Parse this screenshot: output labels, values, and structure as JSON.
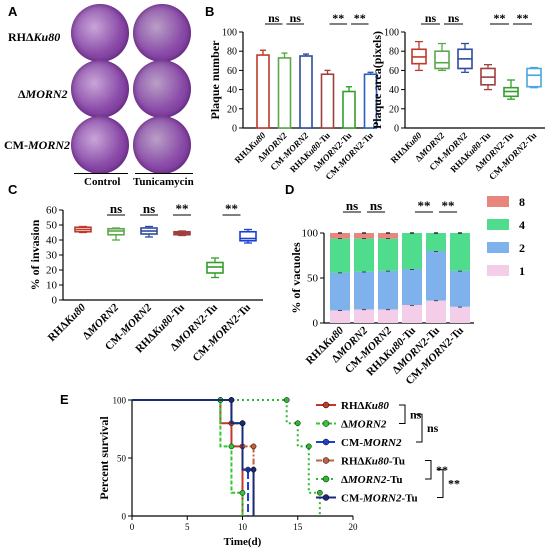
{
  "panels": {
    "A": {
      "letter": "A",
      "rows": [
        {
          "prefix": "RHΔ",
          "italic": "Ku80",
          "suffix": ""
        },
        {
          "prefix": "Δ",
          "italic": "MORN2",
          "suffix": ""
        },
        {
          "prefix": "CM-",
          "italic": "MORN2",
          "suffix": ""
        }
      ],
      "columns": [
        "Control",
        "Tunicamycin"
      ]
    },
    "B": {
      "letter": "B"
    },
    "C": {
      "letter": "C"
    },
    "D": {
      "letter": "D"
    },
    "E": {
      "letter": "E"
    }
  },
  "colors": {
    "ku80": "#c0392b",
    "morn2": "#5aa84a",
    "cm": "#2f4aa0",
    "ku80_tu": "#9e4040",
    "morn2_tu": "#33a02c",
    "cm_tu": "#2c5dc4",
    "plate_purple": "#8a4aa8",
    "plate_light": "#b9a0c6"
  },
  "chart_data": [
    {
      "panel": "B-left",
      "type": "bar",
      "categories": [
        "RHΔKu80",
        "ΔMORN2",
        "CM-MORN2",
        "RHΔKu80-Tu",
        "ΔMORN2-Tu",
        "CM-MORN2-Tu"
      ],
      "values": [
        76,
        73,
        75,
        56,
        38,
        56
      ],
      "errors": [
        5,
        5,
        2,
        4,
        5,
        2
      ],
      "colors": [
        "#c0392b",
        "#5aa84a",
        "#2f4aa0",
        "#9e4040",
        "#33a02c",
        "#2c5dc4"
      ],
      "ylabel": "Plaque number",
      "ylim": [
        0,
        100
      ],
      "yticks": [
        0,
        20,
        40,
        60,
        80,
        100
      ],
      "significance": [
        {
          "from": 0,
          "to": 1,
          "label": "ns"
        },
        {
          "from": 1,
          "to": 2,
          "label": "ns"
        },
        {
          "from": 3,
          "to": 4,
          "label": "**"
        },
        {
          "from": 4,
          "to": 5,
          "label": "**"
        }
      ]
    },
    {
      "panel": "B-right",
      "type": "box",
      "categories": [
        "RHΔKu80",
        "ΔMORN2",
        "CM-MORN2",
        "RHΔKu80-Tu",
        "ΔMORN2-Tu",
        "CM-MORN2-Tu"
      ],
      "boxes": [
        {
          "min": 60,
          "q1": 67,
          "median": 74,
          "q3": 82,
          "max": 90
        },
        {
          "min": 60,
          "q1": 62,
          "median": 68,
          "q3": 80,
          "max": 88
        },
        {
          "min": 58,
          "q1": 62,
          "median": 72,
          "q3": 82,
          "max": 88
        },
        {
          "min": 40,
          "q1": 45,
          "median": 53,
          "q3": 62,
          "max": 66
        },
        {
          "min": 30,
          "q1": 33,
          "median": 38,
          "q3": 42,
          "max": 50
        },
        {
          "min": 42,
          "q1": 43,
          "median": 55,
          "q3": 62,
          "max": 63
        }
      ],
      "colors": [
        "#c0392b",
        "#5aa84a",
        "#2f4aa0",
        "#9e4040",
        "#33a02c",
        "#4aa6e0"
      ],
      "ylabel": "Plaque area(pixels)",
      "ylim": [
        0,
        100
      ],
      "yticks": [
        0,
        20,
        40,
        60,
        80,
        100
      ],
      "significance": [
        {
          "from": 0,
          "to": 1,
          "label": "ns"
        },
        {
          "from": 1,
          "to": 2,
          "label": "ns"
        },
        {
          "from": 3,
          "to": 4,
          "label": "**"
        },
        {
          "from": 4,
          "to": 5,
          "label": "**"
        }
      ]
    },
    {
      "panel": "C",
      "type": "box",
      "categories": [
        "RHΔKu80",
        "ΔMORN2",
        "CM-MORN2",
        "RHΔKu80-Tu",
        "ΔMORN2-Tu",
        "CM-MORN2-Tu"
      ],
      "boxes": [
        {
          "min": 45,
          "q1": 45.5,
          "median": 47,
          "q3": 48.5,
          "max": 49
        },
        {
          "min": 40,
          "q1": 43.5,
          "median": 46,
          "q3": 47.5,
          "max": 48
        },
        {
          "min": 42,
          "q1": 44,
          "median": 46,
          "q3": 48,
          "max": 49
        },
        {
          "min": 43,
          "q1": 43.5,
          "median": 44.5,
          "q3": 45.5,
          "max": 46
        },
        {
          "min": 15,
          "q1": 18,
          "median": 22,
          "q3": 25,
          "max": 28
        },
        {
          "min": 38,
          "q1": 39.5,
          "median": 41,
          "q3": 45.5,
          "max": 47
        }
      ],
      "colors": [
        "#c0392b",
        "#5aa84a",
        "#2f4aa0",
        "#9e4040",
        "#33a02c",
        "#1a3ed0"
      ],
      "ylabel": "% of invasion",
      "ylim": [
        0,
        60
      ],
      "yticks": [
        0,
        10,
        20,
        30,
        40,
        50,
        60
      ],
      "significance": [
        {
          "at": 1,
          "label": "ns"
        },
        {
          "at": 2,
          "label": "ns"
        },
        {
          "at": 3,
          "label": "**"
        },
        {
          "at": 4.5,
          "label": "**"
        }
      ]
    },
    {
      "panel": "D",
      "type": "stacked-bar",
      "categories": [
        "RHΔKu80",
        "ΔMORN2",
        "CM-MORN2",
        "RHΔKu80-Tu",
        "ΔMORN2-Tu",
        "CM-MORN2-Tu"
      ],
      "series": [
        {
          "name": "1",
          "color": "#f4cde8",
          "values": [
            14,
            15,
            15,
            20,
            25,
            18
          ]
        },
        {
          "name": "2",
          "color": "#7fb2ec",
          "values": [
            42,
            42,
            43,
            40,
            55,
            40
          ]
        },
        {
          "name": "4",
          "color": "#4fdc8c",
          "values": [
            38,
            37,
            36,
            40,
            20,
            42
          ]
        },
        {
          "name": "8",
          "color": "#e8857c",
          "values": [
            6,
            6,
            6,
            0,
            0,
            0
          ]
        }
      ],
      "legend_order": [
        "8",
        "4",
        "2",
        "1"
      ],
      "ylabel": "% of vacuoles",
      "ylim": [
        0,
        100
      ],
      "yticks": [
        0,
        50,
        100
      ],
      "significance": [
        {
          "at": 0.5,
          "label": "ns"
        },
        {
          "at": 1.5,
          "label": "ns"
        },
        {
          "at": 3.5,
          "label": "**"
        },
        {
          "at": 4.5,
          "label": "**"
        }
      ]
    },
    {
      "panel": "E",
      "type": "line",
      "xlabel": "Time(d)",
      "ylabel": "Percent survival",
      "xlim": [
        0,
        20
      ],
      "ylim": [
        0,
        100
      ],
      "xticks": [
        0,
        5,
        10,
        15,
        20
      ],
      "yticks": [
        0,
        50,
        100
      ],
      "series": [
        {
          "name": "RHΔKu80",
          "italic": "Ku80",
          "prefix": "RHΔ",
          "suffix": "",
          "color": "#c0392b",
          "dash": "",
          "points": [
            [
              0,
              100
            ],
            [
              8,
              100
            ],
            [
              8,
              80
            ],
            [
              9,
              80
            ],
            [
              9,
              60
            ],
            [
              10,
              60
            ],
            [
              10,
              0
            ]
          ]
        },
        {
          "name": "ΔMORN2",
          "italic": "MORN2",
          "prefix": "Δ",
          "suffix": "",
          "color": "#33c633",
          "dash": "4,2",
          "points": [
            [
              0,
              100
            ],
            [
              8,
              100
            ],
            [
              8,
              60
            ],
            [
              9,
              60
            ],
            [
              9,
              20
            ],
            [
              10,
              20
            ],
            [
              10,
              0
            ]
          ]
        },
        {
          "name": "CM-MORN2",
          "italic": "MORN2",
          "prefix": "CM-",
          "suffix": "",
          "color": "#1f3fd0",
          "dash": "8,3",
          "points": [
            [
              0,
              100
            ],
            [
              9,
              100
            ],
            [
              9,
              80
            ],
            [
              10,
              80
            ],
            [
              10,
              40
            ],
            [
              10.5,
              40
            ],
            [
              10.5,
              0
            ]
          ]
        },
        {
          "name": "RHΔKu80-Tu",
          "italic": "Ku80",
          "prefix": "RHΔ",
          "suffix": "-Tu",
          "color": "#c06040",
          "dash": "6,2,2,2",
          "points": [
            [
              0,
              100
            ],
            [
              9,
              100
            ],
            [
              9,
              80
            ],
            [
              10,
              80
            ],
            [
              10,
              60
            ],
            [
              11,
              60
            ],
            [
              11,
              0
            ]
          ]
        },
        {
          "name": "ΔMORN2-Tu",
          "italic": "MORN2",
          "prefix": "Δ",
          "suffix": "-Tu",
          "color": "#2eb82e",
          "dash": "2,3",
          "points": [
            [
              0,
              100
            ],
            [
              14,
              100
            ],
            [
              14,
              80
            ],
            [
              15,
              80
            ],
            [
              15,
              60
            ],
            [
              16,
              60
            ],
            [
              16,
              20
            ],
            [
              17,
              20
            ],
            [
              17,
              0
            ]
          ]
        },
        {
          "name": "CM-MORN2-Tu",
          "italic": "MORN2",
          "prefix": "CM-",
          "suffix": "-Tu",
          "color": "#1a2a7a",
          "dash": "",
          "points": [
            [
              0,
              100
            ],
            [
              9,
              100
            ],
            [
              9,
              80
            ],
            [
              10,
              80
            ],
            [
              10,
              40
            ],
            [
              11,
              40
            ],
            [
              11,
              0
            ]
          ]
        }
      ],
      "brackets": [
        {
          "between": [
            0,
            1
          ],
          "label": "ns"
        },
        {
          "between": [
            1,
            2
          ],
          "label": "ns"
        },
        {
          "between": [
            3,
            4
          ],
          "label": "**"
        },
        {
          "between": [
            4,
            5
          ],
          "label": "**"
        }
      ]
    }
  ]
}
